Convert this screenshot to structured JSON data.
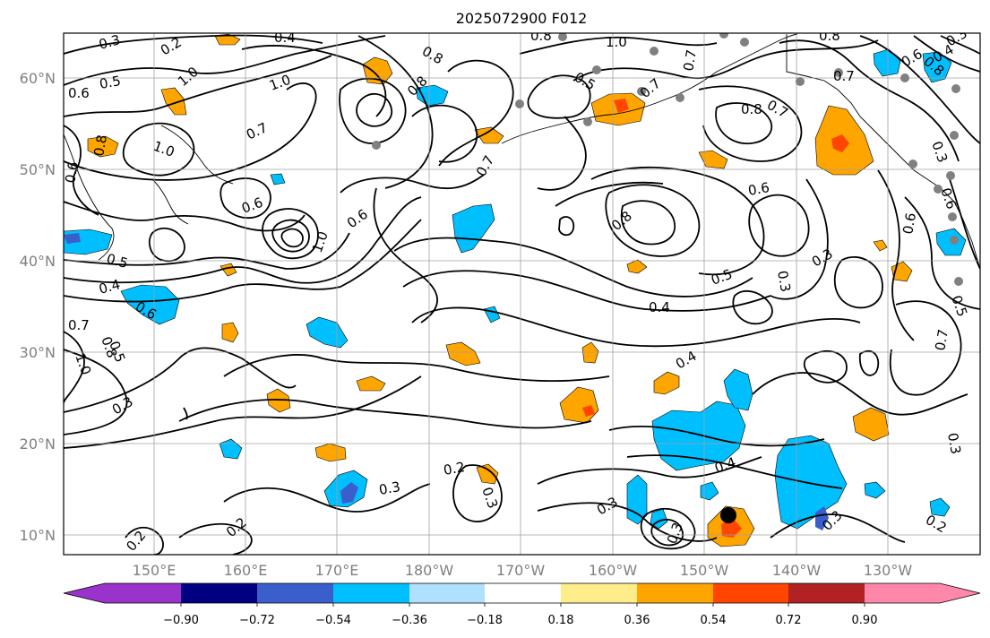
{
  "title": "2025072900 F012",
  "lat_labels": [
    "60°N",
    "50°N",
    "40°N",
    "30°N",
    "20°N",
    "10°N"
  ],
  "lon_labels": [
    "150°E",
    "160°E",
    "170°E",
    "180°W",
    "170°W",
    "160°W",
    "150°W",
    "140°W",
    "130°W"
  ],
  "colorbar": {
    "colors": [
      "#9933cc",
      "#000080",
      "#3a5fcd",
      "#00bfff",
      "#b0e0ff",
      "#ffffff",
      "#ffec8b",
      "#ffa500",
      "#ff4500",
      "#b22222",
      "#ff88aa"
    ],
    "tick_labels": [
      "−0.90",
      "−0.72",
      "−0.54",
      "−0.36",
      "−0.18",
      "0.18",
      "0.36",
      "0.54",
      "0.72",
      "0.90"
    ]
  },
  "contour_labels": {
    "l1": "0.3",
    "l2": "0.2",
    "l3": "0.4",
    "l4": "0.5",
    "l5": "0.6",
    "l6": "1.0",
    "l7": "0.8",
    "l8": "1.0",
    "l9": "0.8",
    "l10": "1.0",
    "l11": "0.6",
    "l12": "0.7",
    "l13": "0.8",
    "l14": "0.6",
    "l15": "0.6",
    "l16": "1.0",
    "l17": "0.5",
    "l18": "0.4",
    "l19": "0.6",
    "l20": "1.0",
    "l21": "0.8",
    "l22": "0.5",
    "l23": "0.7",
    "l24": "0.8",
    "l25": "0.5",
    "l26": "0.7",
    "l27": "0.7",
    "l28": "0.8",
    "l29": "0.7",
    "l30": "0.7",
    "l31": "0.8",
    "l32": "0.6",
    "l33": "0.5",
    "l34": "0.4",
    "l35": "0.3",
    "l36": "0.3",
    "l37": "0.3",
    "l38": "0.2",
    "l39": "0.3",
    "l40": "0.2",
    "l41": "0.2",
    "l42": "0.3",
    "l43": "0.3",
    "l44": "0.4",
    "l45": "0.3",
    "l46": "0.4",
    "l47": "0.3",
    "l48": "0.2",
    "l49": "0.3",
    "l50": "0.6",
    "l51": "0.5",
    "l52": "0.7",
    "l53": "0.6",
    "l54": "0.3",
    "l55": "0.8",
    "l56": "0.6",
    "l57": "0.7",
    "l58": "1.0",
    "l59": "0.8",
    "l60": "0.4",
    "l61": "0.3"
  },
  "colors": {
    "positive": "#ffa500",
    "positive_high": "#ff4500",
    "negative": "#00bfff",
    "negative_strong": "#3a5fcd",
    "grid": "#a0a0a0",
    "station": "#808080"
  }
}
